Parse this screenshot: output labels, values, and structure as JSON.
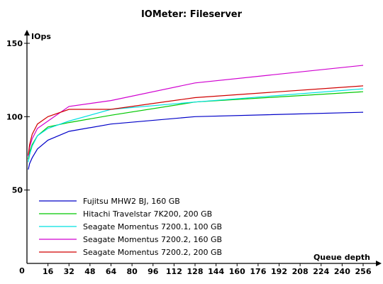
{
  "chart_data": {
    "type": "line",
    "title": "IOMeter: Fileserver",
    "ylabel": "IOps",
    "xlabel": "Queue depth",
    "ylim": [
      0,
      150
    ],
    "xlim": [
      0,
      260
    ],
    "yticks": [
      50,
      100,
      150
    ],
    "ytick_labels": [
      "50",
      "100",
      "150"
    ],
    "xticks": [
      16,
      32,
      48,
      64,
      80,
      96,
      112,
      128,
      144,
      160,
      176,
      192,
      208,
      224,
      240,
      256
    ],
    "xtick_labels": [
      "16",
      "32",
      "48",
      "64",
      "80",
      "96",
      "112",
      "128",
      "144",
      "160",
      "176",
      "192",
      "208",
      "224",
      "240",
      "256"
    ],
    "origin_label": "0",
    "grid": false,
    "legend_position": "bottom-left",
    "series": [
      {
        "name": "Fujitsu MHW2 BJ, 160 GB",
        "color": "#0000c8",
        "x": [
          1,
          2,
          4,
          8,
          16,
          32,
          64,
          128,
          256
        ],
        "y": [
          64,
          68,
          72,
          78,
          84,
          90,
          95,
          100,
          103
        ]
      },
      {
        "name": "Hitachi Travelstar 7K200, 200 GB",
        "color": "#00c800",
        "x": [
          1,
          2,
          4,
          8,
          16,
          32,
          64,
          128,
          256
        ],
        "y": [
          71,
          76,
          81,
          87,
          93,
          96,
          101,
          110,
          117
        ]
      },
      {
        "name": "Seagate Momentus 7200.1, 100 GB",
        "color": "#00e0e0",
        "x": [
          1,
          2,
          4,
          8,
          16,
          32,
          64,
          128,
          256
        ],
        "y": [
          69,
          74,
          80,
          87,
          92,
          97,
          105,
          110,
          119
        ]
      },
      {
        "name": "Seagate Momentus 7200.2, 160 GB",
        "color": "#d000d0",
        "x": [
          1,
          2,
          4,
          8,
          16,
          32,
          64,
          128,
          256
        ],
        "y": [
          73,
          79,
          85,
          92,
          97,
          107,
          111,
          123,
          135
        ]
      },
      {
        "name": "Seagate Momentus 7200.2, 200 GB",
        "color": "#d00000",
        "x": [
          1,
          2,
          4,
          8,
          16,
          32,
          64,
          128,
          256
        ],
        "y": [
          74,
          81,
          88,
          95,
          100,
          105,
          105,
          113,
          121
        ]
      }
    ]
  }
}
